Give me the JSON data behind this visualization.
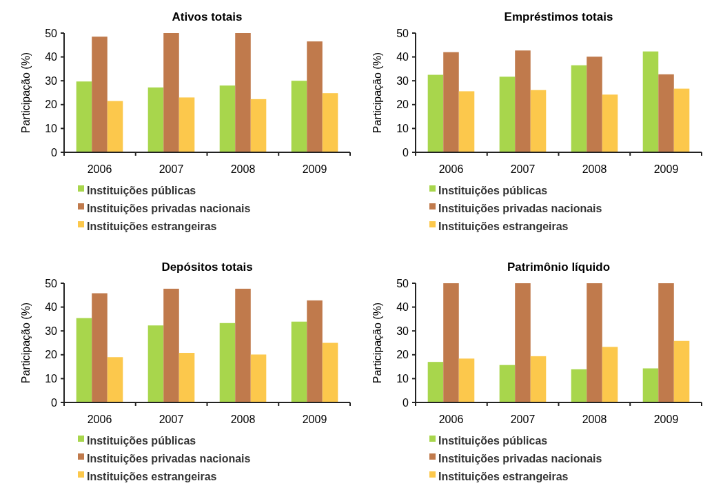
{
  "chart_data": [
    {
      "type": "bar",
      "title": "Ativos totais",
      "ylabel": "Participação (%)",
      "categories": [
        "2006",
        "2007",
        "2008",
        "2009"
      ],
      "ylim": [
        0,
        50
      ],
      "yticks": [
        0,
        10,
        20,
        30,
        40,
        50
      ],
      "legend": "bottom",
      "series": [
        {
          "name": "Instituições públicas",
          "color": "#a8d64c",
          "values": [
            29.7,
            27.2,
            28,
            30
          ]
        },
        {
          "name": "Instituições privadas nacionais",
          "color": "#c07a4c",
          "values": [
            48.5,
            50,
            50,
            46.5
          ]
        },
        {
          "name": "Instituições estrangeiras",
          "color": "#fcc84c",
          "values": [
            21.5,
            23,
            22.3,
            24.8
          ]
        }
      ]
    },
    {
      "type": "bar",
      "title": "Empréstimos totais",
      "ylabel": "Participação (%)",
      "categories": [
        "2006",
        "2007",
        "2008",
        "2009"
      ],
      "ylim": [
        0,
        50
      ],
      "yticks": [
        0,
        10,
        20,
        30,
        40,
        50
      ],
      "legend": "bottom",
      "series": [
        {
          "name": "Instituições públicas",
          "color": "#a8d64c",
          "values": [
            32.5,
            31.7,
            36.5,
            42.3
          ]
        },
        {
          "name": "Instituições privadas nacionais",
          "color": "#c07a4c",
          "values": [
            42,
            42.7,
            40.1,
            32.7
          ]
        },
        {
          "name": "Instituições estrangeiras",
          "color": "#fcc84c",
          "values": [
            25.6,
            26.1,
            24.2,
            26.7
          ]
        }
      ]
    },
    {
      "type": "bar",
      "title": "Depósitos totais",
      "ylabel": "Participação (%)",
      "categories": [
        "2006",
        "2007",
        "2008",
        "2009"
      ],
      "ylim": [
        0,
        50
      ],
      "yticks": [
        0,
        10,
        20,
        30,
        40,
        50
      ],
      "legend": "bottom",
      "series": [
        {
          "name": "Instituições públicas",
          "color": "#a8d64c",
          "values": [
            35.4,
            32.3,
            33.3,
            33.9
          ]
        },
        {
          "name": "Instituições privadas nacionais",
          "color": "#c07a4c",
          "values": [
            45.8,
            47.7,
            47.7,
            42.8
          ]
        },
        {
          "name": "Instituições estrangeiras",
          "color": "#fcc84c",
          "values": [
            19,
            20.8,
            20.1,
            25
          ]
        }
      ]
    },
    {
      "type": "bar",
      "title": "Patrimônio líquido",
      "ylabel": "Participação (%)",
      "categories": [
        "2006",
        "2007",
        "2008",
        "2009"
      ],
      "ylim": [
        0,
        50
      ],
      "yticks": [
        0,
        10,
        20,
        30,
        40,
        50
      ],
      "legend": "bottom",
      "series": [
        {
          "name": "Instituições públicas",
          "color": "#a8d64c",
          "values": [
            17,
            15.7,
            13.9,
            14.3
          ]
        },
        {
          "name": "Instituições privadas nacionais",
          "color": "#c07a4c",
          "values": [
            50,
            50,
            50,
            50
          ]
        },
        {
          "name": "Instituições estrangeiras",
          "color": "#fcc84c",
          "values": [
            18.4,
            19.4,
            23.3,
            25.8
          ]
        }
      ]
    }
  ]
}
